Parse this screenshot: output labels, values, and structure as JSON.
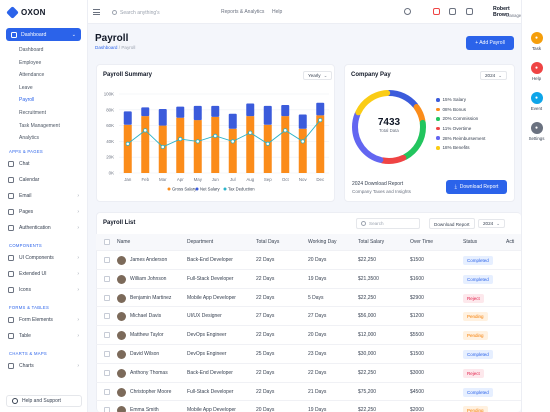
{
  "app": {
    "logo": "OXON"
  },
  "sidebar": {
    "dashboard": "Dashboard",
    "sub_items": [
      "Dashboard",
      "Employee",
      "Attendance",
      "Leave",
      "Payroll",
      "Recruitment",
      "Task Management",
      "Analytics"
    ],
    "apps_title": "APPS & PAGES",
    "apps": [
      {
        "label": "Chat",
        "chev": ""
      },
      {
        "label": "Calendar",
        "chev": ""
      },
      {
        "label": "Email",
        "chev": "›"
      },
      {
        "label": "Pages",
        "chev": "›"
      },
      {
        "label": "Authentication",
        "chev": "›"
      }
    ],
    "components_title": "COMPONENTS",
    "components": [
      {
        "label": "UI Components",
        "chev": "›"
      },
      {
        "label": "Extended UI",
        "chev": "›"
      },
      {
        "label": "Icons",
        "chev": "›"
      }
    ],
    "forms_title": "FORMS & TABLES",
    "forms": [
      {
        "label": "Form Elements",
        "chev": "›"
      },
      {
        "label": "Table",
        "chev": "›"
      }
    ],
    "charts_title": "CHARTS & MAPS",
    "charts": [
      {
        "label": "Charts",
        "chev": "›"
      }
    ],
    "help": "Help and Support"
  },
  "header": {
    "search_placeholder": "Search anything's",
    "links": [
      "Reports & Analytics",
      "Help"
    ],
    "user_name": "Robert Brown",
    "user_role": "Manager"
  },
  "rail": [
    {
      "label": "Task",
      "color": "#f59e0b",
      "icon": "task-icon"
    },
    {
      "label": "Help",
      "color": "#ef4444",
      "icon": "help-icon"
    },
    {
      "label": "Event",
      "color": "#0ea5e9",
      "icon": "event-icon"
    },
    {
      "label": "Settings",
      "color": "#6b7280",
      "icon": "settings-icon"
    }
  ],
  "page": {
    "title": "Payroll",
    "crumb_home": "Dashboard",
    "crumb_sep": " / ",
    "crumb_current": "Payroll",
    "add_button": "+ Add Payroll"
  },
  "summary": {
    "title": "Payroll Summary",
    "period": "Yearly"
  },
  "chart_data": {
    "type": "bar",
    "categories": [
      "Jan",
      "Feb",
      "Mar",
      "Apr",
      "May",
      "Jun",
      "Jul",
      "Aug",
      "Sep",
      "Oct",
      "Nov",
      "Dec"
    ],
    "y_ticks": [
      "100K",
      "80K",
      "60K",
      "40K",
      "20K",
      "0K"
    ],
    "ylim": [
      0,
      100
    ],
    "series": [
      {
        "name": "Gross Salary",
        "color": "#fb8c1a",
        "values": [
          61,
          72,
          60,
          70,
          67,
          71,
          56,
          72,
          61,
          72,
          56,
          73
        ]
      },
      {
        "name": "Net Salary",
        "color": "#3b5bdb",
        "values": [
          17,
          11,
          21,
          14,
          18,
          14,
          19,
          16,
          24,
          14,
          18,
          16
        ]
      },
      {
        "name": "Tax Deduction",
        "color": "#2bb3c9",
        "type": "line",
        "values": [
          37,
          54,
          33,
          43,
          40,
          47,
          40,
          51,
          37,
          54,
          40,
          67
        ]
      }
    ],
    "legend": "bottom"
  },
  "company_pay": {
    "title": "Company Pay",
    "year": "2024",
    "total": "7433",
    "total_label": "Total Data",
    "segments": [
      {
        "pct": 15,
        "label": "15% Salary",
        "color": "#3b5bdb"
      },
      {
        "pct": 8,
        "label": "08% Bonus",
        "color": "#fb8c1a"
      },
      {
        "pct": 20,
        "label": "20% Commission",
        "color": "#22c55e"
      },
      {
        "pct": 11,
        "label": "11% Overtime",
        "color": "#ef4444"
      },
      {
        "pct": 28,
        "label": "28% Reimbursement",
        "color": "#6366f1"
      },
      {
        "pct": 18,
        "label": "18% Benefits",
        "color": "#facc15"
      }
    ],
    "report_title": "2024 Download Report",
    "report_sub": "Company Taxes and Insights",
    "download_button": "Download Report"
  },
  "payroll_list": {
    "title": "Payroll List",
    "search_placeholder": "Search",
    "download": "Download Report",
    "year": "2024",
    "columns": [
      "Name",
      "Department",
      "Total Days",
      "Working Day",
      "Total Salary",
      "Over Time",
      "Status",
      "Acti"
    ],
    "rows": [
      {
        "name": "James Anderson",
        "dept": "Back-End Developer",
        "total": "22 Days",
        "working": "20 Days",
        "salary": "$22,250",
        "overtime": "$1500",
        "status": "Completed"
      },
      {
        "name": "William Johnson",
        "dept": "Full-Stack Developer",
        "total": "22 Days",
        "working": "19 Days",
        "salary": "$21,3500",
        "overtime": "$1600",
        "status": "Completed"
      },
      {
        "name": "Benjamin Martinez",
        "dept": "Mobile App Developer",
        "total": "22 Days",
        "working": "5 Days",
        "salary": "$22,250",
        "overtime": "$2900",
        "status": "Reject"
      },
      {
        "name": "Michael Davis",
        "dept": "UI/UX Designer",
        "total": "27 Days",
        "working": "27 Days",
        "salary": "$56,000",
        "overtime": "$1200",
        "status": "Pending"
      },
      {
        "name": "Matthew Taylor",
        "dept": "DevOps Engineer",
        "total": "22 Days",
        "working": "20 Days",
        "salary": "$12,000",
        "overtime": "$5500",
        "status": "Pending"
      },
      {
        "name": "David Wilson",
        "dept": "DevOps Engineer",
        "total": "25 Days",
        "working": "23 Days",
        "salary": "$30,000",
        "overtime": "$1500",
        "status": "Completed"
      },
      {
        "name": "Anthony Thomas",
        "dept": "Back-End Developer",
        "total": "22 Days",
        "working": "22 Days",
        "salary": "$22,250",
        "overtime": "$3000",
        "status": "Reject"
      },
      {
        "name": "Christopher Moore",
        "dept": "Full-Stack Developer",
        "total": "22 Days",
        "working": "21 Days",
        "salary": "$75,200",
        "overtime": "$4500",
        "status": "Completed"
      },
      {
        "name": "Emma Smith",
        "dept": "Mobile App Developer",
        "total": "20 Days",
        "working": "19 Days",
        "salary": "$22,250",
        "overtime": "$2000",
        "status": "Pending"
      }
    ]
  },
  "status_colors": {
    "Completed": {
      "bg": "#e6efff",
      "fg": "#2b63ea"
    },
    "Reject": {
      "bg": "#fde8ec",
      "fg": "#e11d48"
    },
    "Pending": {
      "bg": "#fff1e0",
      "fg": "#f57c00"
    }
  }
}
